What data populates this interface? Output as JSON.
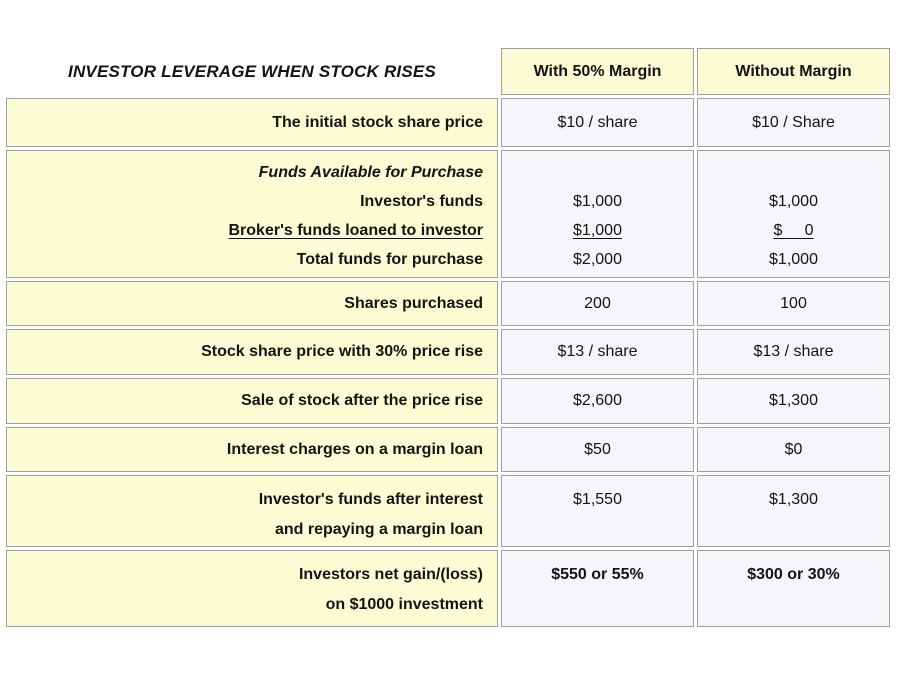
{
  "colors": {
    "label_cell_bg": "#fbfbd4",
    "value_cell_bg": "#f5f5fa",
    "cell_border": "#a0a0a0"
  },
  "table": {
    "title": "INVESTOR LEVERAGE WHEN STOCK RISES",
    "columns": [
      "With 50% Margin",
      "Without Margin"
    ],
    "rows": {
      "initial_price": {
        "label": "The initial stock share price",
        "with_margin": "$10 / share",
        "without_margin": "$10 / Share"
      },
      "funds": {
        "heading": "Funds Available for Purchase",
        "line_investor": "Investor's funds",
        "line_broker": "Broker's funds loaned to investor",
        "line_total": "Total funds for purchase",
        "with_margin": {
          "investor": "$1,000",
          "broker": "$1,000",
          "total": "$2,000"
        },
        "without_margin": {
          "investor": "$1,000",
          "broker": "$     0",
          "total": "$1,000"
        }
      },
      "shares_purchased": {
        "label": "Shares purchased",
        "with_margin": "200",
        "without_margin": "100"
      },
      "price_rise": {
        "label": "Stock share price with 30% price rise",
        "with_margin": "$13 / share",
        "without_margin": "$13 / share"
      },
      "sale": {
        "label": "Sale of stock after the price rise",
        "with_margin": "$2,600",
        "without_margin": "$1,300"
      },
      "interest": {
        "label": "Interest charges on a margin loan",
        "with_margin": "$50",
        "without_margin": "$0"
      },
      "after_interest": {
        "label_line1": "Investor's funds after interest",
        "label_line2": "and repaying a margin loan",
        "with_margin": "$1,550",
        "without_margin": "$1,300"
      },
      "net_gain": {
        "label_line1": "Investors net gain/(loss)",
        "label_line2": "on $1000 investment",
        "with_margin": "$550 or 55%",
        "without_margin": "$300 or 30%"
      }
    }
  }
}
